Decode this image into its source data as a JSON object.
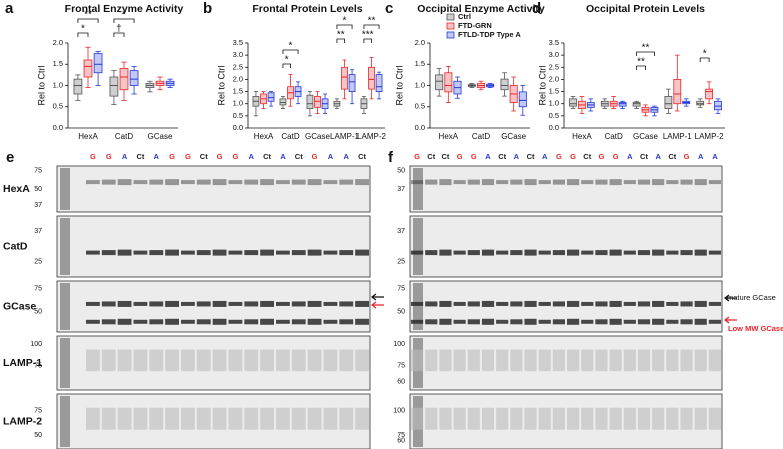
{
  "legend": [
    {
      "name": "Ctrl",
      "color": "#555555",
      "fill": "#cfcfcf"
    },
    {
      "name": "FTD-GRN",
      "color": "#e8262a",
      "fill": "#f7c4c5"
    },
    {
      "name": "FTLD-TDP Type A",
      "color": "#2338d8",
      "fill": "#c3c9f4"
    }
  ],
  "chart_data": [
    {
      "type": "box",
      "label": "a",
      "title": "Frontal Enzyme Activity",
      "ylabel": "Rel to Ctrl",
      "categories": [
        "HexA",
        "CatD",
        "GCase"
      ],
      "ylim": [
        0,
        2
      ],
      "yticks": [
        {
          "value": 0,
          "label": "0.0"
        },
        {
          "value": 0.5,
          "label": "0.5"
        },
        {
          "value": 1,
          "label": "1.0"
        },
        {
          "value": 1.5,
          "label": "1.5"
        },
        {
          "value": 2,
          "label": "2.0"
        }
      ],
      "series": [
        {
          "values": [
            [
              0.65,
              0.8,
              1.0,
              1.15,
              1.25
            ],
            [
              0.55,
              0.75,
              1.0,
              1.2,
              1.35
            ],
            [
              0.85,
              0.95,
              1.0,
              1.05,
              1.1
            ]
          ]
        },
        {
          "values": [
            [
              0.95,
              1.2,
              1.45,
              1.6,
              1.9
            ],
            [
              0.65,
              0.9,
              1.2,
              1.4,
              1.55
            ],
            [
              0.9,
              1.0,
              1.05,
              1.1,
              1.2
            ]
          ]
        },
        {
          "values": [
            [
              1.0,
              1.3,
              1.5,
              1.75,
              1.8
            ],
            [
              0.8,
              1.0,
              1.15,
              1.35,
              1.45
            ],
            [
              0.95,
              1.0,
              1.05,
              1.1,
              1.15
            ]
          ]
        }
      ],
      "annotations": [
        "**",
        "*",
        "*",
        "†"
      ]
    },
    {
      "type": "box",
      "label": "b",
      "title": "Frontal Protein Levels",
      "ylabel": "Rel to Ctrl",
      "categories": [
        "HexA",
        "CatD",
        "GCase",
        "LAMP-1",
        "LAMP-2"
      ],
      "ylim": [
        0,
        3.5
      ],
      "yticks": [
        {
          "value": 0,
          "label": "0.0"
        },
        {
          "value": 0.5,
          "label": "0.5"
        },
        {
          "value": 1,
          "label": "1.0"
        },
        {
          "value": 1.5,
          "label": "1.5"
        },
        {
          "value": 2,
          "label": "2.0"
        },
        {
          "value": 2.5,
          "label": "2.5"
        },
        {
          "value": 3,
          "label": "3.0"
        },
        {
          "value": 3.5,
          "label": "3.5"
        }
      ],
      "series": [
        {
          "values": [
            [
              0.5,
              0.9,
              1.1,
              1.3,
              1.5
            ],
            [
              0.8,
              0.95,
              1.05,
              1.2,
              1.3
            ],
            [
              0.5,
              0.8,
              1.0,
              1.35,
              1.5
            ],
            [
              0.8,
              0.9,
              1.0,
              1.1,
              1.2
            ],
            [
              0.6,
              0.8,
              1.0,
              1.2,
              1.3
            ]
          ]
        },
        {
          "values": [
            [
              0.8,
              1.0,
              1.2,
              1.4,
              1.5
            ],
            [
              0.9,
              1.2,
              1.45,
              1.7,
              2.2
            ],
            [
              0.6,
              0.85,
              1.1,
              1.3,
              1.5
            ],
            [
              1.2,
              1.6,
              2.1,
              2.5,
              2.8
            ],
            [
              1.2,
              1.6,
              2.0,
              2.5,
              2.9
            ]
          ]
        },
        {
          "values": [
            [
              0.9,
              1.1,
              1.25,
              1.45,
              1.5
            ],
            [
              1.0,
              1.3,
              1.5,
              1.7,
              1.9
            ],
            [
              0.6,
              0.8,
              1.0,
              1.2,
              1.4
            ],
            [
              1.0,
              1.5,
              1.9,
              2.2,
              2.4
            ],
            [
              1.2,
              1.5,
              1.7,
              2.2,
              2.3
            ]
          ]
        }
      ],
      "annotations": [
        "*",
        "*",
        "*",
        "**",
        "**",
        "***"
      ]
    },
    {
      "type": "box",
      "label": "c",
      "title": "Occipital Enzyme Activity",
      "ylabel": "Rel to Ctrl",
      "categories": [
        "HexA",
        "CatD",
        "GCase"
      ],
      "ylim": [
        0,
        2
      ],
      "yticks": [
        {
          "value": 0,
          "label": "0.0"
        },
        {
          "value": 0.5,
          "label": "0.5"
        },
        {
          "value": 1,
          "label": "1.0"
        },
        {
          "value": 1.5,
          "label": "1.5"
        },
        {
          "value": 2,
          "label": "2.0"
        }
      ],
      "series": [
        {
          "values": [
            [
              0.75,
              0.9,
              1.1,
              1.25,
              1.4
            ],
            [
              0.95,
              0.98,
              1.0,
              1.02,
              1.05
            ],
            [
              0.75,
              0.9,
              1.0,
              1.15,
              1.3
            ]
          ]
        },
        {
          "values": [
            [
              0.6,
              0.85,
              1.0,
              1.3,
              1.45
            ],
            [
              0.9,
              0.95,
              1.0,
              1.05,
              1.1
            ],
            [
              0.4,
              0.6,
              0.8,
              1.0,
              1.2
            ]
          ]
        },
        {
          "values": [
            [
              0.7,
              0.8,
              0.95,
              1.1,
              1.2
            ],
            [
              0.95,
              0.97,
              1.0,
              1.03,
              1.05
            ],
            [
              0.3,
              0.5,
              0.65,
              0.85,
              1.0
            ]
          ]
        }
      ],
      "annotations": []
    },
    {
      "type": "box",
      "label": "d",
      "title": "Occipital Protein Levels",
      "ylabel": "Rel to Ctrl",
      "categories": [
        "HexA",
        "CatD",
        "GCase",
        "LAMP-1",
        "LAMP-2"
      ],
      "ylim": [
        0,
        3.5
      ],
      "yticks": [
        {
          "value": 0,
          "label": "0.0"
        },
        {
          "value": 0.5,
          "label": "0.5"
        },
        {
          "value": 1,
          "label": "1.0"
        },
        {
          "value": 1.5,
          "label": "1.5"
        },
        {
          "value": 2,
          "label": "2.0"
        },
        {
          "value": 2.5,
          "label": "2.5"
        },
        {
          "value": 3,
          "label": "3.0"
        },
        {
          "value": 3.5,
          "label": "3.5"
        }
      ],
      "series": [
        {
          "values": [
            [
              0.8,
              0.9,
              1.0,
              1.2,
              1.3
            ],
            [
              0.8,
              0.9,
              1.0,
              1.1,
              1.2
            ],
            [
              0.8,
              0.9,
              1.0,
              1.05,
              1.1
            ],
            [
              0.6,
              0.8,
              1.0,
              1.3,
              1.6
            ],
            [
              0.85,
              0.95,
              1.0,
              1.1,
              1.2
            ]
          ]
        },
        {
          "values": [
            [
              0.6,
              0.8,
              0.95,
              1.1,
              1.3
            ],
            [
              0.8,
              0.9,
              1.0,
              1.1,
              1.3
            ],
            [
              0.5,
              0.65,
              0.75,
              0.85,
              0.95
            ],
            [
              0.7,
              1.0,
              1.4,
              2.0,
              3.0
            ],
            [
              1.0,
              1.2,
              1.5,
              1.6,
              1.9
            ]
          ]
        },
        {
          "values": [
            [
              0.7,
              0.85,
              0.95,
              1.05,
              1.2
            ],
            [
              0.8,
              0.9,
              1.0,
              1.05,
              1.1
            ],
            [
              0.5,
              0.65,
              0.75,
              0.85,
              0.9
            ],
            [
              0.9,
              1.0,
              1.05,
              1.1,
              1.2
            ],
            [
              0.6,
              0.75,
              0.9,
              1.1,
              1.2
            ]
          ]
        }
      ],
      "annotations": [
        "**",
        "**",
        "*"
      ]
    }
  ],
  "lane_colors": {
    "G": "#e8262a",
    "A": "#2338d8",
    "Ct": "#222222"
  },
  "blots": [
    {
      "label": "e",
      "lanes": [
        "G",
        "G",
        "A",
        "Ct",
        "A",
        "G",
        "G",
        "Ct",
        "G",
        "G",
        "A",
        "Ct",
        "A",
        "Ct",
        "G",
        "A",
        "A",
        "Ct"
      ],
      "rows": [
        {
          "name": "HexA",
          "markers": [
            75,
            50,
            37
          ]
        },
        {
          "name": "CatD",
          "markers": [
            37,
            25
          ]
        },
        {
          "name": "GCase",
          "markers": [
            75,
            50
          ]
        },
        {
          "name": "LAMP-1",
          "markers": [
            100,
            75
          ]
        },
        {
          "name": "LAMP-2",
          "markers": [
            75,
            50
          ]
        }
      ],
      "annotations": []
    },
    {
      "label": "f",
      "lanes": [
        "G",
        "Ct",
        "Ct",
        "G",
        "G",
        "A",
        "Ct",
        "A",
        "Ct",
        "A",
        "G",
        "G",
        "Ct",
        "G",
        "G",
        "A",
        "Ct",
        "A",
        "Ct",
        "G",
        "A",
        "A"
      ],
      "rows": [
        {
          "name": "HexA",
          "markers": [
            50,
            37
          ]
        },
        {
          "name": "CatD",
          "markers": [
            37,
            25
          ]
        },
        {
          "name": "GCase",
          "markers": [
            75,
            50
          ]
        },
        {
          "name": "LAMP-1",
          "markers": [
            100,
            75,
            60
          ]
        },
        {
          "name": "LAMP-2",
          "markers": [
            100,
            75,
            60
          ]
        }
      ],
      "annotations": [
        "mature GCase",
        "Low MW GCase"
      ]
    }
  ]
}
